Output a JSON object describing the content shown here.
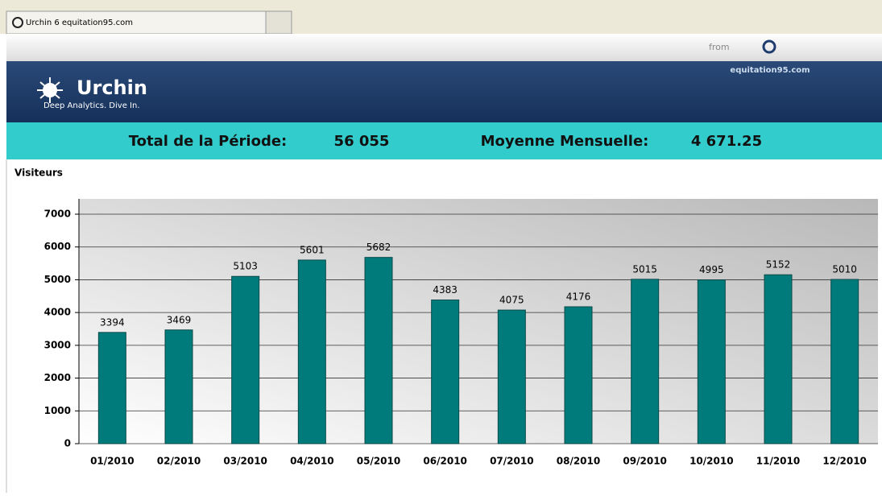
{
  "tab": {
    "title": "Urchin 6 equitation95.com"
  },
  "toolbar": {
    "from": "from"
  },
  "header": {
    "logo": "Urchin",
    "tagline": "Deep Analytics. Dive In.",
    "site": "equitation95.com"
  },
  "summary": {
    "total_label": "Total de la Période:",
    "total_value": "56 055",
    "average_label": "Moyenne Mensuelle:",
    "average_value": "4 671.25"
  },
  "chart_data": {
    "type": "bar",
    "y_label": "Visiteurs",
    "categories": [
      "01/2010",
      "02/2010",
      "03/2010",
      "04/2010",
      "05/2010",
      "06/2010",
      "07/2010",
      "08/2010",
      "09/2010",
      "10/2010",
      "11/2010",
      "12/2010"
    ],
    "values": [
      3394,
      3469,
      5103,
      5601,
      5682,
      4383,
      4075,
      4176,
      5015,
      4995,
      5152,
      5010
    ],
    "color": "#007b7b",
    "ylim": [
      0,
      7000
    ],
    "yticks": [
      0,
      1000,
      2000,
      3000,
      4000,
      5000,
      6000,
      7000
    ],
    "grid": true
  }
}
